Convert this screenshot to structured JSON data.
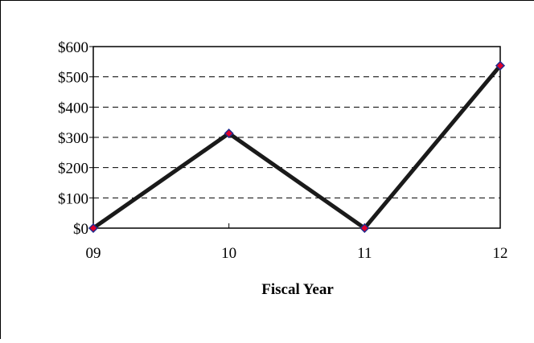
{
  "chart_data": {
    "type": "line",
    "title": "",
    "xlabel": "Fiscal Year",
    "ylabel": "",
    "categories": [
      "09",
      "10",
      "11",
      "12"
    ],
    "series": [
      {
        "values": [
          0,
          313,
          0,
          537
        ]
      }
    ],
    "ylim": [
      0,
      600
    ],
    "yticks": [
      0,
      100,
      200,
      300,
      400,
      500,
      600
    ],
    "ytick_labels": [
      "$0",
      "$100",
      "$200",
      "$300",
      "$400",
      "$500",
      "$600"
    ],
    "grid": "horizontal dashed",
    "legend": "none",
    "colors": {
      "line": "#1a1a1a",
      "marker_fill": "#e0002a",
      "marker_stroke": "#1f2a8c",
      "grid": "#000000",
      "frame": "#000000"
    }
  }
}
